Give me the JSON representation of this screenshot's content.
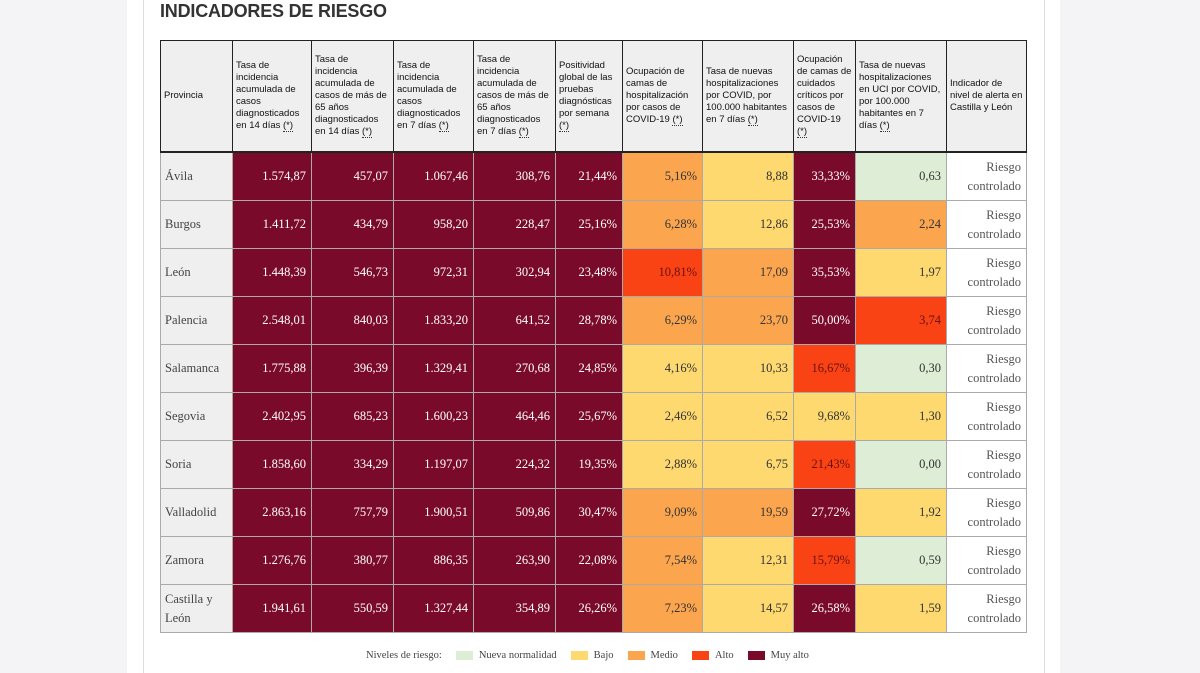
{
  "title": "INDICADORES DE RIESGO",
  "colors": {
    "muy_alto": "#7a0a2a",
    "alto": "#fa4315",
    "medio": "#fba64f",
    "bajo": "#fdd970",
    "nueva": "#deeed6"
  },
  "columns": [
    {
      "label": "Provincia",
      "note": ""
    },
    {
      "label": "Tasa de incidencia acumulada de casos diagnosticados en 14 días ",
      "note": "(*)"
    },
    {
      "label": "Tasa de incidencia acumulada de casos de más de 65 años diagnosticados en 14 días ",
      "note": "(*)"
    },
    {
      "label": "Tasa de incidencia acumulada de casos diagnosticados en 7 días ",
      "note": "(*)"
    },
    {
      "label": "Tasa de incidencia acumulada de casos de más de 65 años diagnosticados en 7 días ",
      "note": "(*)"
    },
    {
      "label": "Positividad global de las pruebas diagnósticas por semana ",
      "note": "(*)"
    },
    {
      "label": "Ocupación de camas de hospitalización por casos de COVID-19 ",
      "note": "(*)"
    },
    {
      "label": "Tasa de nuevas hospitalizaciones por COVID, por 100.000 habitantes en 7 días ",
      "note": "(*)"
    },
    {
      "label": "Ocupación de camas de cuidados críticos por casos de COVID-19 ",
      "note": "(*)"
    },
    {
      "label": "Tasa de nuevas hospitalizaciones en UCI por COVID, por 100.000 habitantes en 7 días ",
      "note": "(*)"
    },
    {
      "label": "Indicador de nivel de alerta en Castilla y León",
      "note": ""
    }
  ],
  "rows": [
    {
      "provincia": "Ávila",
      "values": [
        "1.574,87",
        "457,07",
        "1.067,46",
        "308,76",
        "21,44%",
        "5,16%",
        "8,88",
        "33,33%",
        "0,63"
      ],
      "levels": [
        "muy_alto",
        "muy_alto",
        "muy_alto",
        "muy_alto",
        "muy_alto",
        "medio",
        "bajo",
        "muy_alto",
        "nueva"
      ],
      "alerta": "Riesgo controlado"
    },
    {
      "provincia": "Burgos",
      "values": [
        "1.411,72",
        "434,79",
        "958,20",
        "228,47",
        "25,16%",
        "6,28%",
        "12,86",
        "25,53%",
        "2,24"
      ],
      "levels": [
        "muy_alto",
        "muy_alto",
        "muy_alto",
        "muy_alto",
        "muy_alto",
        "medio",
        "bajo",
        "muy_alto",
        "medio"
      ],
      "alerta": "Riesgo controlado"
    },
    {
      "provincia": "León",
      "values": [
        "1.448,39",
        "546,73",
        "972,31",
        "302,94",
        "23,48%",
        "10,81%",
        "17,09",
        "35,53%",
        "1,97"
      ],
      "levels": [
        "muy_alto",
        "muy_alto",
        "muy_alto",
        "muy_alto",
        "muy_alto",
        "alto",
        "medio",
        "muy_alto",
        "bajo"
      ],
      "alerta": "Riesgo controlado"
    },
    {
      "provincia": "Palencia",
      "values": [
        "2.548,01",
        "840,03",
        "1.833,20",
        "641,52",
        "28,78%",
        "6,29%",
        "23,70",
        "50,00%",
        "3,74"
      ],
      "levels": [
        "muy_alto",
        "muy_alto",
        "muy_alto",
        "muy_alto",
        "muy_alto",
        "medio",
        "medio",
        "muy_alto",
        "alto"
      ],
      "alerta": "Riesgo controlado"
    },
    {
      "provincia": "Salamanca",
      "values": [
        "1.775,88",
        "396,39",
        "1.329,41",
        "270,68",
        "24,85%",
        "4,16%",
        "10,33",
        "16,67%",
        "0,30"
      ],
      "levels": [
        "muy_alto",
        "muy_alto",
        "muy_alto",
        "muy_alto",
        "muy_alto",
        "bajo",
        "bajo",
        "alto",
        "nueva"
      ],
      "alerta": "Riesgo controlado"
    },
    {
      "provincia": "Segovia",
      "values": [
        "2.402,95",
        "685,23",
        "1.600,23",
        "464,46",
        "25,67%",
        "2,46%",
        "6,52",
        "9,68%",
        "1,30"
      ],
      "levels": [
        "muy_alto",
        "muy_alto",
        "muy_alto",
        "muy_alto",
        "muy_alto",
        "bajo",
        "bajo",
        "bajo",
        "bajo"
      ],
      "alerta": "Riesgo controlado"
    },
    {
      "provincia": "Soria",
      "values": [
        "1.858,60",
        "334,29",
        "1.197,07",
        "224,32",
        "19,35%",
        "2,88%",
        "6,75",
        "21,43%",
        "0,00"
      ],
      "levels": [
        "muy_alto",
        "muy_alto",
        "muy_alto",
        "muy_alto",
        "muy_alto",
        "bajo",
        "bajo",
        "alto",
        "nueva"
      ],
      "alerta": "Riesgo controlado"
    },
    {
      "provincia": "Valladolid",
      "values": [
        "2.863,16",
        "757,79",
        "1.900,51",
        "509,86",
        "30,47%",
        "9,09%",
        "19,59",
        "27,72%",
        "1,92"
      ],
      "levels": [
        "muy_alto",
        "muy_alto",
        "muy_alto",
        "muy_alto",
        "muy_alto",
        "medio",
        "medio",
        "muy_alto",
        "bajo"
      ],
      "alerta": "Riesgo controlado"
    },
    {
      "provincia": "Zamora",
      "values": [
        "1.276,76",
        "380,77",
        "886,35",
        "263,90",
        "22,08%",
        "7,54%",
        "12,31",
        "15,79%",
        "0,59"
      ],
      "levels": [
        "muy_alto",
        "muy_alto",
        "muy_alto",
        "muy_alto",
        "muy_alto",
        "medio",
        "bajo",
        "alto",
        "nueva"
      ],
      "alerta": "Riesgo controlado"
    },
    {
      "provincia": "Castilla y León",
      "values": [
        "1.941,61",
        "550,59",
        "1.327,44",
        "354,89",
        "26,26%",
        "7,23%",
        "14,57",
        "26,58%",
        "1,59"
      ],
      "levels": [
        "muy_alto",
        "muy_alto",
        "muy_alto",
        "muy_alto",
        "muy_alto",
        "medio",
        "bajo",
        "muy_alto",
        "bajo"
      ],
      "alerta": "Riesgo controlado"
    }
  ],
  "legend": {
    "label": "Niveles de riesgo:",
    "items": [
      {
        "level": "nueva",
        "label": "Nueva normalidad"
      },
      {
        "level": "bajo",
        "label": "Bajo"
      },
      {
        "level": "medio",
        "label": "Medio"
      },
      {
        "level": "alto",
        "label": "Alto"
      },
      {
        "level": "muy_alto",
        "label": "Muy alto"
      }
    ]
  }
}
